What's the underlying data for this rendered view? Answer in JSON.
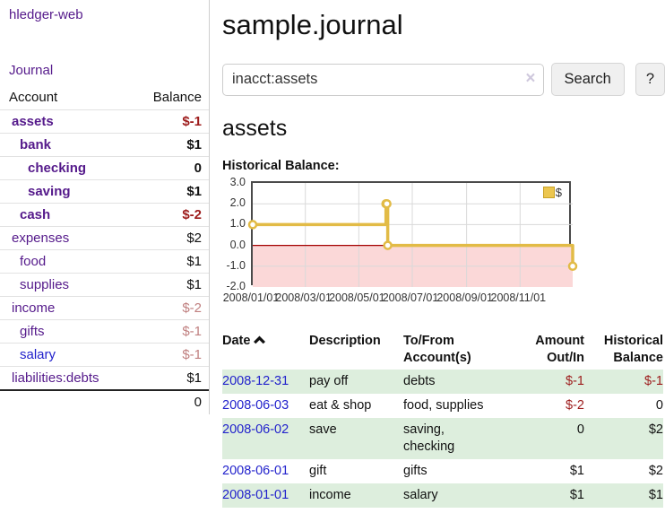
{
  "app": {
    "title": "hledger-web"
  },
  "colors": {
    "link_purple": "#551a8b",
    "link_blue": "#2222cc",
    "negative_strong": "#9d1c1c",
    "negative_soft": "#c08080",
    "row_stripe_green": "#ddeedd",
    "chart_line_gold": "#e2bb46",
    "legend_gold_fill": "#ecc64f",
    "legend_gold_border": "#c9a227",
    "chart_negative_bg": "#fbd8d8",
    "chart_zero_line": "#a40000",
    "chart_grid": "#d9d9d9",
    "chart_border": "#4a4a4a"
  },
  "sidebar": {
    "journal_link": "Journal",
    "account_header": "Account",
    "balance_header": "Balance",
    "accounts": [
      {
        "name": "assets",
        "balance": "$-1",
        "depth": 1,
        "bold": true,
        "balance_style": "negative-strong"
      },
      {
        "name": "bank",
        "balance": "$1",
        "depth": 2,
        "bold": true,
        "balance_style": "normal"
      },
      {
        "name": "checking",
        "balance": "0",
        "depth": 3,
        "bold": true,
        "balance_style": "normal"
      },
      {
        "name": "saving",
        "balance": "$1",
        "depth": 3,
        "bold": true,
        "balance_style": "normal"
      },
      {
        "name": "cash",
        "balance": "$-2",
        "depth": 2,
        "bold": true,
        "balance_style": "negative-strong"
      },
      {
        "name": "expenses",
        "balance": "$2",
        "depth": 1,
        "bold": false,
        "balance_style": "normal"
      },
      {
        "name": "food",
        "balance": "$1",
        "depth": 2,
        "bold": false,
        "balance_style": "normal"
      },
      {
        "name": "supplies",
        "balance": "$1",
        "depth": 2,
        "bold": false,
        "balance_style": "normal"
      },
      {
        "name": "income",
        "balance": "$-2",
        "depth": 1,
        "bold": false,
        "balance_style": "negative-soft"
      },
      {
        "name": "gifts",
        "balance": "$-1",
        "depth": 2,
        "bold": false,
        "balance_style": "negative-soft"
      },
      {
        "name": "salary",
        "balance": "$-1",
        "depth": 2,
        "bold": false,
        "balance_style": "negative-soft",
        "link_color": "blue"
      },
      {
        "name": "liabilities:debts",
        "balance": "$1",
        "depth": 1,
        "bold": false,
        "balance_style": "normal"
      }
    ],
    "total": "0"
  },
  "main": {
    "title": "sample.journal",
    "search": {
      "value": "inacct:assets",
      "clear_icon": "×",
      "button": "Search",
      "help_button": "?"
    },
    "account_heading": "assets",
    "chart_label": "Historical Balance:"
  },
  "chart_data": {
    "type": "line",
    "step": true,
    "title": "Historical Balance",
    "legend": "$",
    "series": [
      {
        "name": "$",
        "points": [
          [
            "2008-01-01",
            1
          ],
          [
            "2008-06-01",
            2
          ],
          [
            "2008-06-02",
            2
          ],
          [
            "2008-06-03",
            0
          ],
          [
            "2008-12-31",
            -1
          ]
        ]
      }
    ],
    "xlim": [
      "2008-01-01",
      "2008-12-31"
    ],
    "ylim": [
      -2,
      3
    ],
    "yticks": [
      3,
      2,
      1,
      0,
      -1,
      -2
    ],
    "ytick_labels": [
      "3.0",
      "2.0",
      "1.0",
      "0.0",
      "-1.0",
      "-2.0"
    ],
    "xticks": [
      "2008-01-01",
      "2008-03-01",
      "2008-05-01",
      "2008-07-01",
      "2008-09-01",
      "2008-11-01"
    ],
    "xtick_labels": [
      "2008/01/01",
      "2008/03/01",
      "2008/05/01",
      "2008/07/01",
      "2008/09/01",
      "2008/11/01"
    ],
    "negative_region_shaded": true,
    "grid": true,
    "legend_position": "top-right"
  },
  "register": {
    "headers": {
      "date": "Date",
      "description": "Description",
      "tofrom": "To/From Account(s)",
      "amount": "Amount Out/In",
      "balance": "Historical Balance"
    },
    "sort": "date-ascending",
    "rows": [
      {
        "date": "2008-12-31",
        "description": "pay off",
        "accounts": [
          "debts"
        ],
        "amount": "$-1",
        "amount_negative": true,
        "balance": "$-1",
        "balance_negative": true,
        "stripe": true
      },
      {
        "date": "2008-06-03",
        "description": "eat & shop",
        "accounts": [
          "food, supplies"
        ],
        "amount": "$-2",
        "amount_negative": true,
        "balance": "0",
        "balance_negative": false,
        "stripe": false
      },
      {
        "date": "2008-06-02",
        "description": "save",
        "accounts": [
          "saving,",
          "checking"
        ],
        "amount": "0",
        "amount_negative": false,
        "balance": "$2",
        "balance_negative": false,
        "stripe": true
      },
      {
        "date": "2008-06-01",
        "description": "gift",
        "accounts": [
          "gifts"
        ],
        "amount": "$1",
        "amount_negative": false,
        "balance": "$2",
        "balance_negative": false,
        "stripe": false
      },
      {
        "date": "2008-01-01",
        "description": "income",
        "accounts": [
          "salary"
        ],
        "amount": "$1",
        "amount_negative": false,
        "balance": "$1",
        "balance_negative": false,
        "stripe": true
      }
    ]
  }
}
